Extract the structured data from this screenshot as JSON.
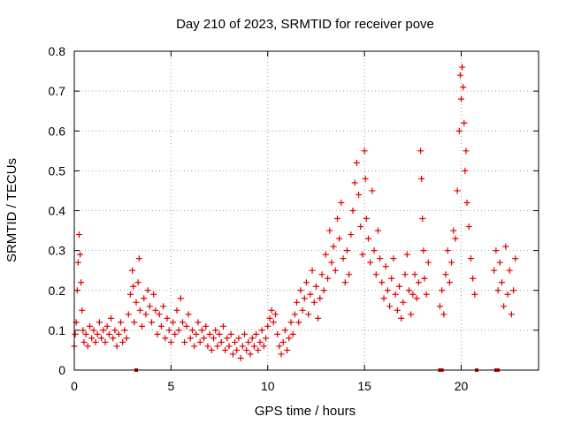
{
  "chart_data": {
    "type": "scatter",
    "title": "Day 210 of 2023, SRMTID for receiver pove",
    "xlabel": "GPS time / hours",
    "ylabel": "SRMTID / TECUs",
    "xlim": [
      0,
      24
    ],
    "ylim": [
      0,
      0.8
    ],
    "xticks": [
      0,
      5,
      10,
      15,
      20
    ],
    "xtick_labels": [
      "0",
      "5",
      "10",
      "15",
      "20"
    ],
    "yticks": [
      0,
      0.1,
      0.2,
      0.3,
      0.4,
      0.5,
      0.6,
      0.7,
      0.8
    ],
    "ytick_labels": [
      "0",
      "0.1",
      "0.2",
      "0.3",
      "0.4",
      "0.5",
      "0.6",
      "0.7",
      "0.8"
    ],
    "grid": true,
    "marker": "plus",
    "color": "#e00000",
    "legend": false,
    "series": [
      {
        "name": "SRMTID",
        "points": [
          [
            0.0,
            0.06
          ],
          [
            0.05,
            0.09
          ],
          [
            0.1,
            0.12
          ],
          [
            0.15,
            0.2
          ],
          [
            0.2,
            0.27
          ],
          [
            0.25,
            0.34
          ],
          [
            0.3,
            0.29
          ],
          [
            0.35,
            0.22
          ],
          [
            0.4,
            0.15
          ],
          [
            0.45,
            0.1
          ],
          [
            0.5,
            0.07
          ],
          [
            0.6,
            0.09
          ],
          [
            0.7,
            0.06
          ],
          [
            0.8,
            0.11
          ],
          [
            0.9,
            0.08
          ],
          [
            1.0,
            0.1
          ],
          [
            1.1,
            0.07
          ],
          [
            1.2,
            0.09
          ],
          [
            1.3,
            0.12
          ],
          [
            1.4,
            0.08
          ],
          [
            1.5,
            0.1
          ],
          [
            1.6,
            0.07
          ],
          [
            1.7,
            0.11
          ],
          [
            1.8,
            0.09
          ],
          [
            1.9,
            0.13
          ],
          [
            2.0,
            0.08
          ],
          [
            2.1,
            0.1
          ],
          [
            2.2,
            0.06
          ],
          [
            2.3,
            0.09
          ],
          [
            2.4,
            0.12
          ],
          [
            2.5,
            0.07
          ],
          [
            2.6,
            0.1
          ],
          [
            2.7,
            0.08
          ],
          [
            2.8,
            0.14
          ],
          [
            2.9,
            0.19
          ],
          [
            3.0,
            0.25
          ],
          [
            3.05,
            0.21
          ],
          [
            3.1,
            0.12
          ],
          [
            3.2,
            0.17
          ],
          [
            3.3,
            0.22
          ],
          [
            3.35,
            0.28
          ],
          [
            3.4,
            0.15
          ],
          [
            3.5,
            0.11
          ],
          [
            3.6,
            0.18
          ],
          [
            3.7,
            0.14
          ],
          [
            3.8,
            0.2
          ],
          [
            3.9,
            0.16
          ],
          [
            4.0,
            0.12
          ],
          [
            4.1,
            0.19
          ],
          [
            4.2,
            0.15
          ],
          [
            4.3,
            0.09
          ],
          [
            4.4,
            0.14
          ],
          [
            4.5,
            0.11
          ],
          [
            4.6,
            0.16
          ],
          [
            4.7,
            0.08
          ],
          [
            4.8,
            0.13
          ],
          [
            4.9,
            0.1
          ],
          [
            5.0,
            0.07
          ],
          [
            5.1,
            0.12
          ],
          [
            5.2,
            0.09
          ],
          [
            5.3,
            0.15
          ],
          [
            5.4,
            0.1
          ],
          [
            5.5,
            0.18
          ],
          [
            5.6,
            0.12
          ],
          [
            5.7,
            0.07
          ],
          [
            5.8,
            0.11
          ],
          [
            5.9,
            0.14
          ],
          [
            6.0,
            0.08
          ],
          [
            6.1,
            0.1
          ],
          [
            6.2,
            0.06
          ],
          [
            6.3,
            0.09
          ],
          [
            6.4,
            0.12
          ],
          [
            6.5,
            0.07
          ],
          [
            6.6,
            0.1
          ],
          [
            6.7,
            0.08
          ],
          [
            6.8,
            0.11
          ],
          [
            6.9,
            0.06
          ],
          [
            7.0,
            0.09
          ],
          [
            7.1,
            0.05
          ],
          [
            7.2,
            0.08
          ],
          [
            7.3,
            0.1
          ],
          [
            7.4,
            0.06
          ],
          [
            7.5,
            0.09
          ],
          [
            7.6,
            0.07
          ],
          [
            7.7,
            0.11
          ],
          [
            7.8,
            0.05
          ],
          [
            7.9,
            0.08
          ],
          [
            8.0,
            0.06
          ],
          [
            8.1,
            0.09
          ],
          [
            8.2,
            0.04
          ],
          [
            8.3,
            0.07
          ],
          [
            8.4,
            0.05
          ],
          [
            8.5,
            0.08
          ],
          [
            8.6,
            0.03
          ],
          [
            8.7,
            0.06
          ],
          [
            8.8,
            0.09
          ],
          [
            8.9,
            0.05
          ],
          [
            9.0,
            0.07
          ],
          [
            9.1,
            0.04
          ],
          [
            9.2,
            0.08
          ],
          [
            9.3,
            0.06
          ],
          [
            9.4,
            0.09
          ],
          [
            9.5,
            0.05
          ],
          [
            9.6,
            0.07
          ],
          [
            9.7,
            0.1
          ],
          [
            9.8,
            0.06
          ],
          [
            9.9,
            0.08
          ],
          [
            10.0,
            0.11
          ],
          [
            10.1,
            0.13
          ],
          [
            10.2,
            0.15
          ],
          [
            10.3,
            0.12
          ],
          [
            10.4,
            0.14
          ],
          [
            10.5,
            0.09
          ],
          [
            10.6,
            0.06
          ],
          [
            10.7,
            0.04
          ],
          [
            10.8,
            0.07
          ],
          [
            10.9,
            0.1
          ],
          [
            11.0,
            0.05
          ],
          [
            11.1,
            0.08
          ],
          [
            11.2,
            0.12
          ],
          [
            11.3,
            0.09
          ],
          [
            11.4,
            0.14
          ],
          [
            11.5,
            0.17
          ],
          [
            11.6,
            0.12
          ],
          [
            11.7,
            0.2
          ],
          [
            11.8,
            0.15
          ],
          [
            11.9,
            0.18
          ],
          [
            12.0,
            0.22
          ],
          [
            12.1,
            0.14
          ],
          [
            12.2,
            0.19
          ],
          [
            12.3,
            0.25
          ],
          [
            12.4,
            0.17
          ],
          [
            12.5,
            0.21
          ],
          [
            12.6,
            0.13
          ],
          [
            12.7,
            0.18
          ],
          [
            12.8,
            0.24
          ],
          [
            12.9,
            0.2
          ],
          [
            13.0,
            0.29
          ],
          [
            13.1,
            0.23
          ],
          [
            13.2,
            0.35
          ],
          [
            13.3,
            0.27
          ],
          [
            13.4,
            0.31
          ],
          [
            13.5,
            0.25
          ],
          [
            13.6,
            0.38
          ],
          [
            13.7,
            0.33
          ],
          [
            13.8,
            0.42
          ],
          [
            13.9,
            0.28
          ],
          [
            14.0,
            0.22
          ],
          [
            14.1,
            0.3
          ],
          [
            14.2,
            0.24
          ],
          [
            14.3,
            0.34
          ],
          [
            14.4,
            0.4
          ],
          [
            14.5,
            0.47
          ],
          [
            14.6,
            0.52
          ],
          [
            14.7,
            0.44
          ],
          [
            14.8,
            0.36
          ],
          [
            14.9,
            0.29
          ],
          [
            15.0,
            0.55
          ],
          [
            15.05,
            0.48
          ],
          [
            15.1,
            0.38
          ],
          [
            15.2,
            0.33
          ],
          [
            15.3,
            0.27
          ],
          [
            15.4,
            0.45
          ],
          [
            15.5,
            0.3
          ],
          [
            15.6,
            0.24
          ],
          [
            15.7,
            0.35
          ],
          [
            15.8,
            0.28
          ],
          [
            15.9,
            0.22
          ],
          [
            16.0,
            0.18
          ],
          [
            16.1,
            0.26
          ],
          [
            16.2,
            0.2
          ],
          [
            16.3,
            0.16
          ],
          [
            16.4,
            0.23
          ],
          [
            16.5,
            0.28
          ],
          [
            16.6,
            0.19
          ],
          [
            16.7,
            0.15
          ],
          [
            16.8,
            0.21
          ],
          [
            16.9,
            0.13
          ],
          [
            17.0,
            0.17
          ],
          [
            17.1,
            0.24
          ],
          [
            17.2,
            0.29
          ],
          [
            17.3,
            0.2
          ],
          [
            17.4,
            0.14
          ],
          [
            17.5,
            0.19
          ],
          [
            17.6,
            0.24
          ],
          [
            17.7,
            0.18
          ],
          [
            17.8,
            0.22
          ],
          [
            17.9,
            0.55
          ],
          [
            17.95,
            0.48
          ],
          [
            18.0,
            0.38
          ],
          [
            18.05,
            0.3
          ],
          [
            18.1,
            0.23
          ],
          [
            18.2,
            0.19
          ],
          [
            18.3,
            0.27
          ],
          [
            18.9,
            0.16
          ],
          [
            19.0,
            0.2
          ],
          [
            19.1,
            0.14
          ],
          [
            19.2,
            0.24
          ],
          [
            19.3,
            0.3
          ],
          [
            19.4,
            0.22
          ],
          [
            19.5,
            0.27
          ],
          [
            19.6,
            0.35
          ],
          [
            19.7,
            0.33
          ],
          [
            19.8,
            0.45
          ],
          [
            19.9,
            0.6
          ],
          [
            19.95,
            0.74
          ],
          [
            20.0,
            0.68
          ],
          [
            20.05,
            0.76
          ],
          [
            20.1,
            0.71
          ],
          [
            20.15,
            0.62
          ],
          [
            20.2,
            0.5
          ],
          [
            20.25,
            0.55
          ],
          [
            20.3,
            0.42
          ],
          [
            20.4,
            0.36
          ],
          [
            20.5,
            0.28
          ],
          [
            20.6,
            0.23
          ],
          [
            20.7,
            0.19
          ],
          [
            21.7,
            0.25
          ],
          [
            21.8,
            0.3
          ],
          [
            21.9,
            0.2
          ],
          [
            22.0,
            0.27
          ],
          [
            22.1,
            0.22
          ],
          [
            22.2,
            0.16
          ],
          [
            22.3,
            0.31
          ],
          [
            22.4,
            0.19
          ],
          [
            22.5,
            0.25
          ],
          [
            22.6,
            0.14
          ],
          [
            22.7,
            0.2
          ],
          [
            22.8,
            0.28
          ]
        ]
      }
    ],
    "baseline_markers_x": [
      3.2,
      18.9,
      19.0,
      20.8,
      21.8,
      21.9
    ]
  }
}
